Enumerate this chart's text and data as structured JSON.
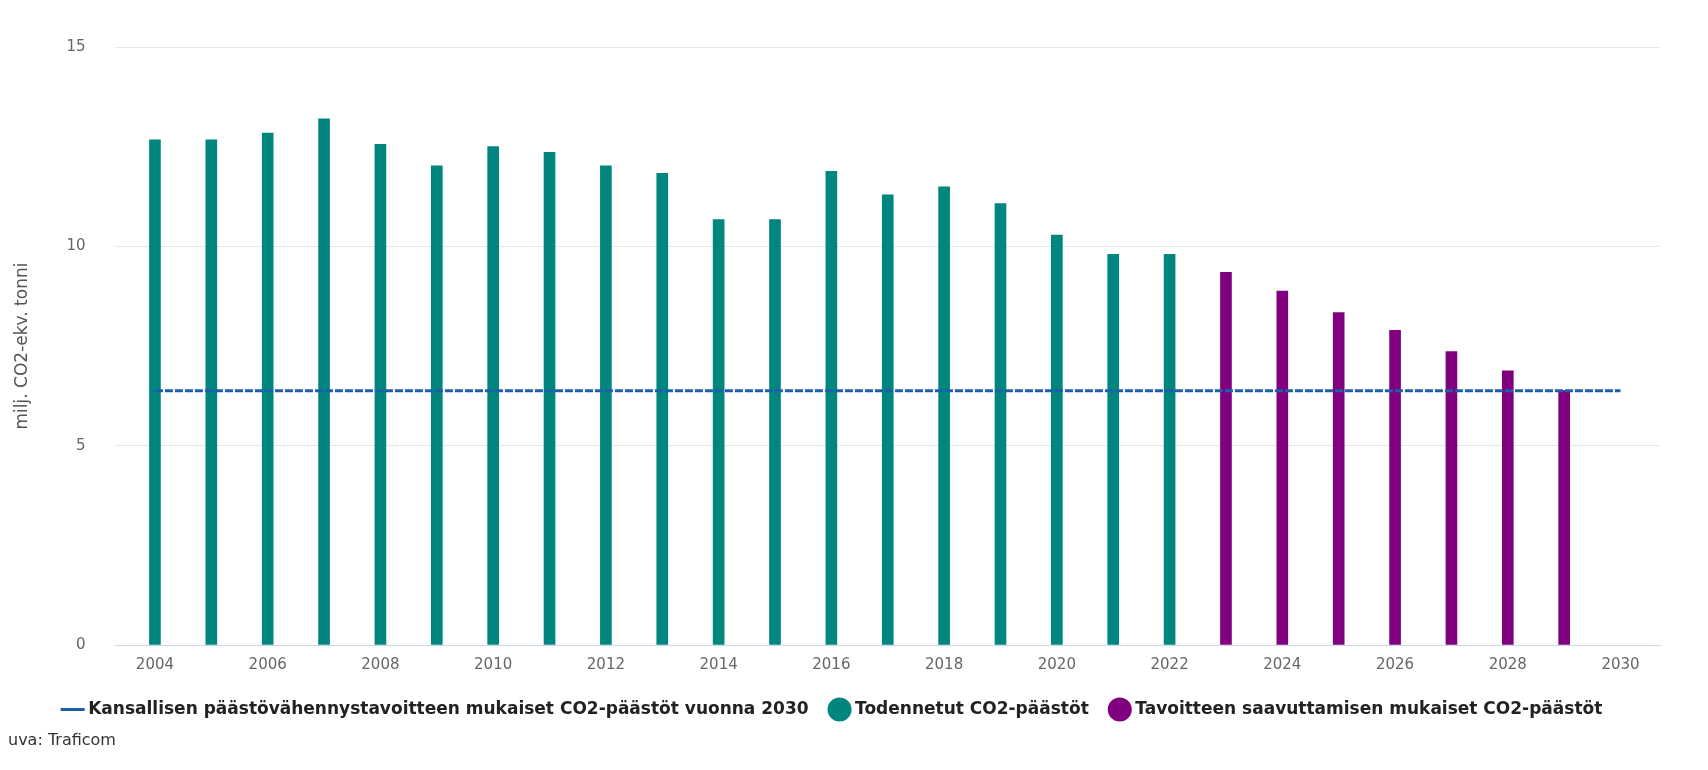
{
  "chart_data": {
    "type": "bar",
    "ylabel": "milj. CO2-ekv. tonni",
    "xlim": [
      2003.3,
      2030.7
    ],
    "xticks": [
      2004,
      2006,
      2008,
      2010,
      2012,
      2014,
      2016,
      2018,
      2020,
      2022,
      2024,
      2026,
      2028,
      2030
    ],
    "ylim": [
      0,
      15
    ],
    "yticks": [
      0,
      5,
      10,
      15
    ],
    "grid": "y",
    "legend": "bottom",
    "annotations": [
      "uva: Traficom"
    ],
    "series": [
      {
        "name": "Todennetut CO2-päästöt",
        "color": "#00857f",
        "x": [
          2004,
          2005,
          2006,
          2007,
          2008,
          2009,
          2010,
          2011,
          2012,
          2013,
          2014,
          2015,
          2016,
          2017,
          2018,
          2019,
          2020,
          2021,
          2022
        ],
        "values": [
          12.67,
          12.67,
          12.84,
          13.2,
          12.56,
          12.02,
          12.5,
          12.36,
          12.02,
          11.83,
          10.67,
          10.67,
          11.88,
          11.29,
          11.49,
          11.07,
          10.28,
          9.8,
          9.8
        ]
      },
      {
        "name": "Tavoitteen saavuttamisen mukaiset CO2-päästöt",
        "color": "#800080",
        "x": [
          2023,
          2024,
          2025,
          2026,
          2027,
          2028,
          2029
        ],
        "values": [
          9.35,
          8.88,
          8.34,
          7.89,
          7.36,
          6.88,
          6.38
        ]
      },
      {
        "name": "Kansallisen päästövähennystavoitteen mukaiset CO2-päästöt vuonna 2030",
        "type": "line",
        "line_style": "dashed",
        "marker": "none",
        "color": "#1f5fa8",
        "x": [
          2004,
          2030
        ],
        "values": [
          6.38,
          6.38
        ]
      }
    ]
  }
}
